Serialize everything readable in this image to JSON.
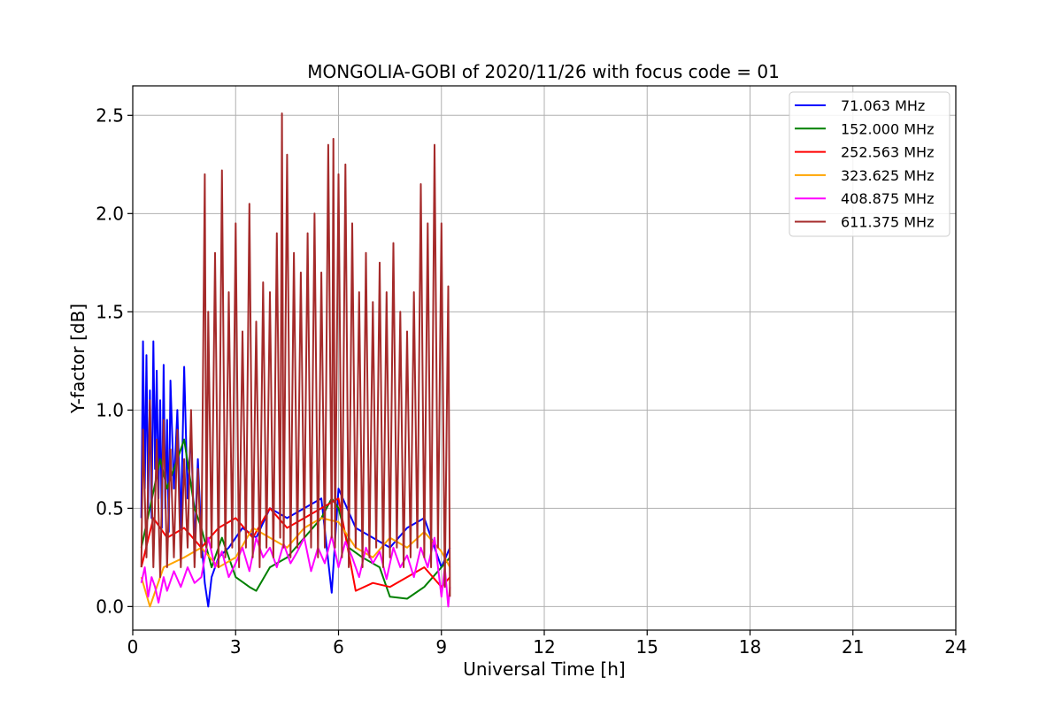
{
  "chart_data": {
    "type": "line",
    "title": "MONGOLIA-GOBI of 2020/11/26 with focus code = 01",
    "xlabel": "Universal Time [h]",
    "ylabel": "Y-factor [dB]",
    "xlim": [
      0,
      24
    ],
    "ylim": [
      -0.12,
      2.65
    ],
    "x_ticks": [
      0,
      3,
      6,
      9,
      12,
      15,
      18,
      21,
      24
    ],
    "x_tick_labels": [
      "0",
      "3",
      "6",
      "9",
      "12",
      "15",
      "18",
      "21",
      "24"
    ],
    "y_ticks": [
      0.0,
      0.5,
      1.0,
      1.5,
      2.0,
      2.5
    ],
    "y_tick_labels": [
      "0.0",
      "0.5",
      "1.0",
      "1.5",
      "2.0",
      "2.5"
    ],
    "grid": true,
    "legend_position": "top-right",
    "series": [
      {
        "name": " 71.063 MHz",
        "color": "#0000ff",
        "x": [
          0.25,
          0.3,
          0.35,
          0.4,
          0.45,
          0.5,
          0.55,
          0.6,
          0.65,
          0.7,
          0.75,
          0.8,
          0.85,
          0.9,
          0.95,
          1.0,
          1.05,
          1.1,
          1.2,
          1.3,
          1.4,
          1.5,
          1.6,
          1.7,
          1.8,
          1.9,
          2.0,
          2.1,
          2.2,
          2.3,
          2.5,
          2.8,
          3.2,
          3.6,
          4.0,
          4.5,
          5.0,
          5.5,
          5.8,
          6.0,
          6.5,
          7.0,
          7.5,
          8.0,
          8.5,
          9.0,
          9.25
        ],
        "values": [
          0.45,
          1.35,
          0.6,
          1.28,
          0.5,
          1.1,
          0.45,
          1.35,
          0.7,
          1.2,
          0.55,
          1.05,
          0.4,
          1.23,
          0.5,
          0.95,
          0.38,
          1.15,
          0.6,
          1.0,
          0.4,
          1.22,
          0.55,
          0.9,
          0.3,
          0.75,
          0.35,
          0.12,
          0.0,
          0.15,
          0.25,
          0.3,
          0.4,
          0.35,
          0.5,
          0.45,
          0.5,
          0.55,
          0.07,
          0.6,
          0.4,
          0.35,
          0.3,
          0.4,
          0.45,
          0.2,
          0.3
        ]
      },
      {
        "name": "152.000 MHz",
        "color": "#008000",
        "x": [
          0.25,
          0.5,
          0.8,
          1.0,
          1.4,
          1.5,
          1.8,
          2.0,
          2.3,
          2.6,
          3.0,
          3.4,
          3.6,
          4.0,
          4.5,
          5.0,
          5.5,
          5.8,
          6.0,
          6.3,
          6.7,
          7.2,
          7.5,
          8.0,
          8.5,
          9.0,
          9.25
        ],
        "values": [
          0.3,
          0.5,
          0.75,
          0.6,
          0.8,
          0.85,
          0.5,
          0.4,
          0.2,
          0.35,
          0.15,
          0.1,
          0.08,
          0.2,
          0.25,
          0.35,
          0.45,
          0.55,
          0.5,
          0.3,
          0.25,
          0.2,
          0.05,
          0.04,
          0.1,
          0.2,
          0.25
        ]
      },
      {
        "name": "252.563 MHz",
        "color": "#ff0000",
        "x": [
          0.25,
          0.6,
          1.0,
          1.5,
          2.0,
          2.5,
          3.0,
          3.5,
          4.0,
          4.5,
          5.0,
          5.5,
          6.0,
          6.5,
          7.0,
          7.5,
          8.0,
          8.5,
          9.0,
          9.25
        ],
        "values": [
          0.2,
          0.45,
          0.35,
          0.4,
          0.3,
          0.4,
          0.45,
          0.35,
          0.5,
          0.4,
          0.45,
          0.5,
          0.55,
          0.08,
          0.12,
          0.1,
          0.15,
          0.2,
          0.1,
          0.15
        ]
      },
      {
        "name": "323.625 MHz",
        "color": "#ffa500",
        "x": [
          0.25,
          0.5,
          0.9,
          1.5,
          2.0,
          2.5,
          3.0,
          3.5,
          4.0,
          4.5,
          5.0,
          5.5,
          6.0,
          6.5,
          7.0,
          7.5,
          8.0,
          8.5,
          9.0,
          9.25
        ],
        "values": [
          0.15,
          0.0,
          0.2,
          0.25,
          0.3,
          0.2,
          0.25,
          0.4,
          0.35,
          0.3,
          0.4,
          0.45,
          0.43,
          0.3,
          0.25,
          0.35,
          0.3,
          0.38,
          0.28,
          0.2
        ]
      },
      {
        "name": "408.875 MHz",
        "color": "#ff00ff",
        "x": [
          0.25,
          0.35,
          0.45,
          0.55,
          0.65,
          0.75,
          0.9,
          1.0,
          1.2,
          1.4,
          1.6,
          1.8,
          2.0,
          2.1,
          2.2,
          2.4,
          2.6,
          2.8,
          3.0,
          3.2,
          3.4,
          3.6,
          3.8,
          4.0,
          4.2,
          4.4,
          4.6,
          4.8,
          5.0,
          5.2,
          5.4,
          5.6,
          5.8,
          6.0,
          6.2,
          6.4,
          6.6,
          6.8,
          7.0,
          7.2,
          7.4,
          7.6,
          7.8,
          8.0,
          8.2,
          8.4,
          8.6,
          8.8,
          9.0,
          9.1,
          9.2,
          9.25
        ],
        "values": [
          0.12,
          0.2,
          0.05,
          0.15,
          0.1,
          0.02,
          0.15,
          0.08,
          0.18,
          0.1,
          0.2,
          0.12,
          0.15,
          0.25,
          0.35,
          0.2,
          0.28,
          0.15,
          0.22,
          0.3,
          0.18,
          0.35,
          0.25,
          0.3,
          0.2,
          0.32,
          0.22,
          0.28,
          0.35,
          0.18,
          0.3,
          0.22,
          0.36,
          0.2,
          0.33,
          0.25,
          0.15,
          0.3,
          0.22,
          0.28,
          0.14,
          0.3,
          0.2,
          0.26,
          0.15,
          0.3,
          0.2,
          0.35,
          0.05,
          0.2,
          0.0,
          0.1
        ]
      },
      {
        "name": "611.375 MHz",
        "color": "#a52a2a",
        "x": [
          0.25,
          0.3,
          0.4,
          0.5,
          0.6,
          0.7,
          0.8,
          0.9,
          1.0,
          1.1,
          1.2,
          1.3,
          1.4,
          1.5,
          1.6,
          1.7,
          1.8,
          1.9,
          2.0,
          2.1,
          2.15,
          2.2,
          2.3,
          2.4,
          2.5,
          2.6,
          2.7,
          2.8,
          2.9,
          3.0,
          3.1,
          3.2,
          3.3,
          3.4,
          3.5,
          3.6,
          3.7,
          3.8,
          3.9,
          4.0,
          4.1,
          4.2,
          4.3,
          4.35,
          4.4,
          4.5,
          4.6,
          4.7,
          4.8,
          4.9,
          5.0,
          5.1,
          5.2,
          5.3,
          5.4,
          5.5,
          5.6,
          5.7,
          5.8,
          5.85,
          5.9,
          6.0,
          6.1,
          6.2,
          6.3,
          6.4,
          6.5,
          6.6,
          6.7,
          6.8,
          6.9,
          7.0,
          7.1,
          7.2,
          7.3,
          7.4,
          7.5,
          7.6,
          7.7,
          7.8,
          7.9,
          8.0,
          8.1,
          8.2,
          8.3,
          8.4,
          8.5,
          8.6,
          8.7,
          8.8,
          8.9,
          9.0,
          9.1,
          9.2,
          9.25
        ],
        "values": [
          0.2,
          0.9,
          0.25,
          1.05,
          0.2,
          0.85,
          0.15,
          0.95,
          0.2,
          0.8,
          0.25,
          0.9,
          0.2,
          0.75,
          0.3,
          1.0,
          0.2,
          0.7,
          0.25,
          2.2,
          0.3,
          1.5,
          0.3,
          1.8,
          0.2,
          2.22,
          0.25,
          1.6,
          0.3,
          1.95,
          0.2,
          1.4,
          0.3,
          2.05,
          0.25,
          1.45,
          0.2,
          1.65,
          0.3,
          1.6,
          0.25,
          1.9,
          0.35,
          2.51,
          0.3,
          2.3,
          0.25,
          1.8,
          0.3,
          1.7,
          0.35,
          1.9,
          0.3,
          2.0,
          0.25,
          1.7,
          0.3,
          2.35,
          0.35,
          2.38,
          0.3,
          2.2,
          0.25,
          2.25,
          0.2,
          1.95,
          0.3,
          1.6,
          0.2,
          1.8,
          0.25,
          1.55,
          0.3,
          1.75,
          0.2,
          1.6,
          0.25,
          1.85,
          0.3,
          1.5,
          0.2,
          1.4,
          0.25,
          1.6,
          0.3,
          2.15,
          0.25,
          1.95,
          0.2,
          2.35,
          0.3,
          1.95,
          0.1,
          1.63,
          0.05
        ]
      }
    ]
  }
}
